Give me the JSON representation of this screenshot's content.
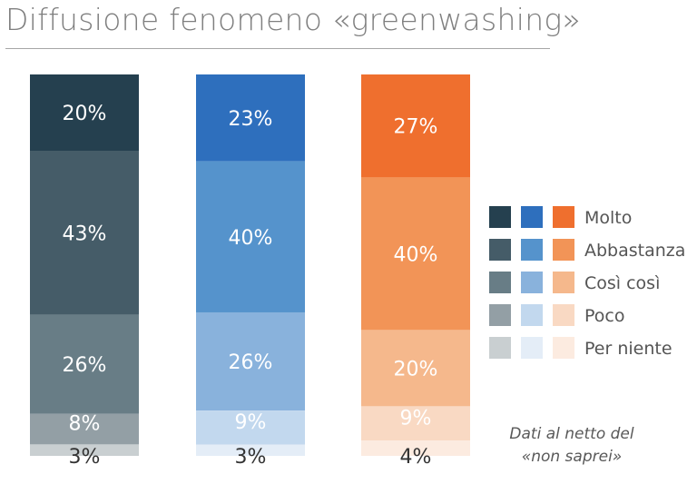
{
  "title": "Diffusione fenomeno «greenwashing»",
  "note_line1": "Dati al netto del",
  "note_line2": "«non saprei»",
  "chart_data": {
    "type": "bar",
    "stacked": true,
    "orientation": "vertical",
    "categories": [
      "",
      "",
      ""
    ],
    "series": [
      {
        "name": "Molto",
        "values": [
          20,
          23,
          27
        ]
      },
      {
        "name": "Abbastanza",
        "values": [
          43,
          40,
          40
        ]
      },
      {
        "name": "Così così",
        "values": [
          26,
          26,
          20
        ]
      },
      {
        "name": "Poco",
        "values": [
          8,
          9,
          9
        ]
      },
      {
        "name": "Per niente",
        "values": [
          3,
          3,
          4
        ]
      }
    ],
    "colors": [
      [
        "#25404f",
        "#2e6fbd",
        "#ef6f2e"
      ],
      [
        "#455c68",
        "#5593cc",
        "#f29457"
      ],
      [
        "#687d86",
        "#89b2dc",
        "#f5b88c"
      ],
      [
        "#939fa5",
        "#c2d8ee",
        "#f9d9c3"
      ],
      [
        "#c9cfd1",
        "#e4edf7",
        "#fcebe0"
      ]
    ],
    "label_colors": [
      "#ffffff",
      "#ffffff",
      "#ffffff",
      "#ffffff",
      "#333333"
    ],
    "value_suffix": "%",
    "ylim": [
      0,
      100
    ],
    "legend_position": "right"
  }
}
